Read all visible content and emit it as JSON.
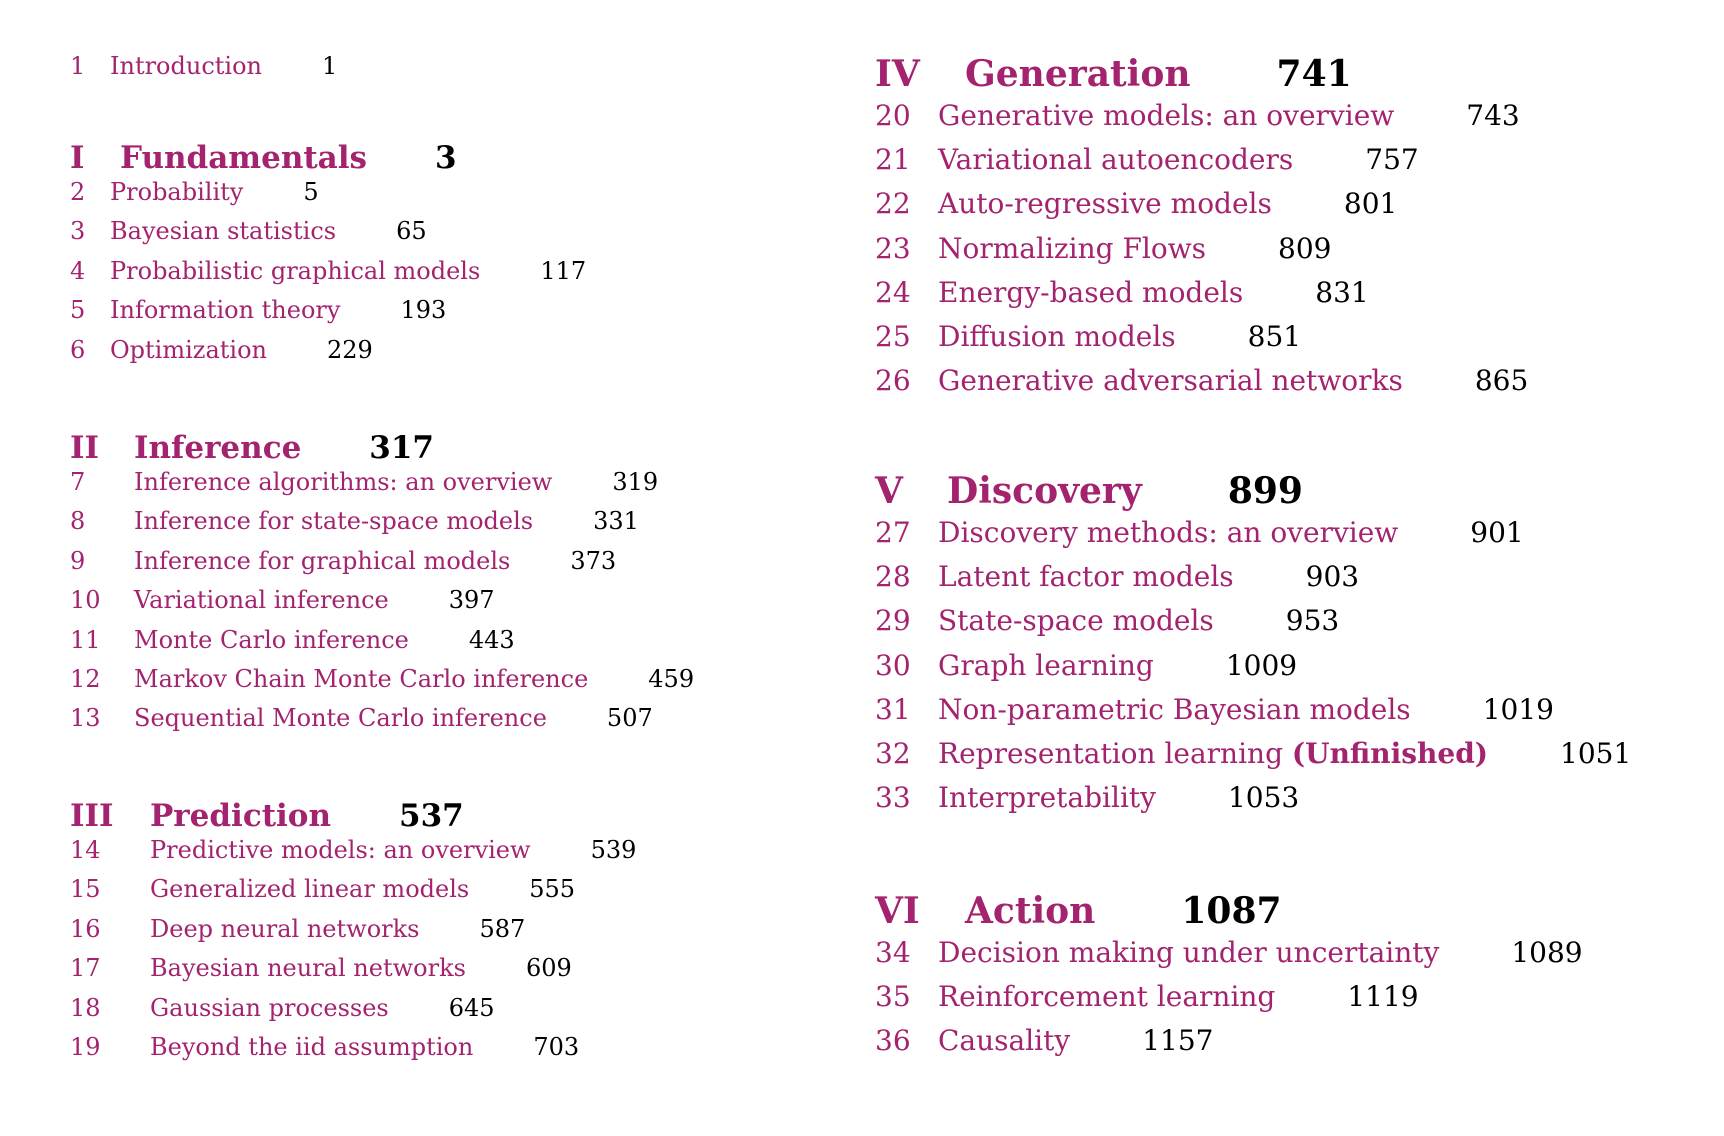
{
  "colors": {
    "accent": "#a3236f",
    "page_number": "#000000"
  },
  "intro": {
    "num": "1",
    "title": "Introduction",
    "page": "1"
  },
  "parts": [
    {
      "num": "I",
      "title": "Fundamentals",
      "page": "3",
      "chapters": [
        {
          "num": "2",
          "title": "Probability",
          "page": "5"
        },
        {
          "num": "3",
          "title": "Bayesian statistics",
          "page": "65"
        },
        {
          "num": "4",
          "title": "Probabilistic graphical models",
          "page": "117"
        },
        {
          "num": "5",
          "title": "Information theory",
          "page": "193"
        },
        {
          "num": "6",
          "title": "Optimization",
          "page": "229"
        }
      ]
    },
    {
      "num": "II",
      "title": "Inference",
      "page": "317",
      "chapters": [
        {
          "num": "7",
          "title": "Inference algorithms: an overview",
          "page": "319"
        },
        {
          "num": "8",
          "title": "Inference for state-space models",
          "page": "331"
        },
        {
          "num": "9",
          "title": "Inference for graphical models",
          "page": "373"
        },
        {
          "num": "10",
          "title": "Variational inference",
          "page": "397"
        },
        {
          "num": "11",
          "title": "Monte Carlo inference",
          "page": "443"
        },
        {
          "num": "12",
          "title": "Markov Chain Monte Carlo inference",
          "page": "459"
        },
        {
          "num": "13",
          "title": "Sequential Monte Carlo inference",
          "page": "507"
        }
      ]
    },
    {
      "num": "III",
      "title": "Prediction",
      "page": "537",
      "chapters": [
        {
          "num": "14",
          "title": "Predictive models: an overview",
          "page": "539"
        },
        {
          "num": "15",
          "title": "Generalized linear models",
          "page": "555"
        },
        {
          "num": "16",
          "title": "Deep neural networks",
          "page": "587"
        },
        {
          "num": "17",
          "title": "Bayesian neural networks",
          "page": "609"
        },
        {
          "num": "18",
          "title": "Gaussian processes",
          "page": "645"
        },
        {
          "num": "19",
          "title": "Beyond the iid assumption",
          "page": "703"
        }
      ]
    },
    {
      "num": "IV",
      "title": "Generation",
      "page": "741",
      "chapters": [
        {
          "num": "20",
          "title": "Generative models: an overview",
          "page": "743"
        },
        {
          "num": "21",
          "title": "Variational autoencoders",
          "page": "757"
        },
        {
          "num": "22",
          "title": "Auto-regressive models",
          "page": "801"
        },
        {
          "num": "23",
          "title": "Normalizing Flows",
          "page": "809"
        },
        {
          "num": "24",
          "title": "Energy-based models",
          "page": "831"
        },
        {
          "num": "25",
          "title": "Diffusion models",
          "page": "851"
        },
        {
          "num": "26",
          "title": "Generative adversarial networks",
          "page": "865"
        }
      ]
    },
    {
      "num": "V",
      "title": "Discovery",
      "page": "899",
      "chapters": [
        {
          "num": "27",
          "title": "Discovery methods: an overview",
          "page": "901"
        },
        {
          "num": "28",
          "title": "Latent factor models",
          "page": "903"
        },
        {
          "num": "29",
          "title": "State-space models",
          "page": "953"
        },
        {
          "num": "30",
          "title": "Graph learning",
          "page": "1009"
        },
        {
          "num": "31",
          "title": "Non-parametric Bayesian models",
          "page": "1019"
        },
        {
          "num": "32",
          "title": "Representation learning",
          "title_suffix": "(Unfinished)",
          "page": "1051"
        },
        {
          "num": "33",
          "title": "Interpretability",
          "page": "1053"
        }
      ]
    },
    {
      "num": "VI",
      "title": "Action",
      "page": "1087",
      "chapters": [
        {
          "num": "34",
          "title": "Decision making under uncertainty",
          "page": "1089"
        },
        {
          "num": "35",
          "title": "Reinforcement learning",
          "page": "1119"
        },
        {
          "num": "36",
          "title": "Causality",
          "page": "1157"
        }
      ]
    }
  ]
}
